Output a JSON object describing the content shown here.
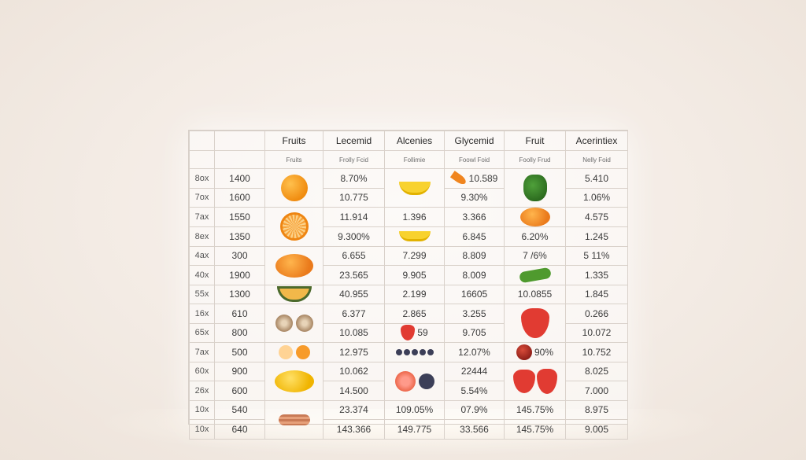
{
  "headers": [
    "",
    "",
    "Fruits",
    "Lecemid",
    "Alcenies",
    "Glycemid",
    "Fruit",
    "Acerintiex"
  ],
  "subheaders": [
    "",
    "",
    "Fruits",
    "Frolly Fcid",
    "Follimie",
    "Foowl Foid",
    "Foolly Frud",
    "Nelly Foid"
  ],
  "rows": [
    {
      "label": "8ox",
      "num": "1400",
      "c3": "8.70%",
      "c4": "",
      "c5": "10.589",
      "c7": "5.410"
    },
    {
      "label": "7ox",
      "num": "1600",
      "c3": "10.775",
      "c4": "",
      "c5": "9.30%",
      "c7": "1.06%"
    },
    {
      "label": "7ax",
      "num": "1550",
      "c3": "11.914",
      "c4": "1.396",
      "c5": "3.366",
      "c7": "4.575"
    },
    {
      "label": "8ex",
      "num": "1350",
      "c3": "9.300%",
      "c4": "",
      "c5": "6.845",
      "c6": "6.20%",
      "c7": "1.245"
    },
    {
      "label": "4ax",
      "num": "300",
      "c3": "6.655",
      "c4": "7.299",
      "c5": "8.809",
      "c6": "7 /6%",
      "c7": "5 11%"
    },
    {
      "label": "40x",
      "num": "1900",
      "c3": "23.565",
      "c4": "9.905",
      "c5": "8.009",
      "c7": "1.335"
    },
    {
      "label": "55x",
      "num": "1300",
      "c3": "40.955",
      "c4": "2.199",
      "c5": "16605",
      "c6": "10.0855",
      "c7": "1.845"
    },
    {
      "label": "16x",
      "num": "610",
      "c3": "6.377",
      "c4": "2.865",
      "c5": "3.255",
      "c7": "0.266"
    },
    {
      "label": "65x",
      "num": "800",
      "c3": "10.085",
      "c4": "59",
      "c5": "9.705",
      "c7": "10.072"
    },
    {
      "label": "7ax",
      "num": "500",
      "c3": "12.975",
      "c4": "",
      "c5": "12.07%",
      "c6": "90%",
      "c7": "10.752"
    },
    {
      "label": "60x",
      "num": "900",
      "c3": "10.062",
      "c4": "",
      "c5": "22444",
      "c7": "8.025"
    },
    {
      "label": "26x",
      "num": "600",
      "c3": "14.500",
      "c4": "",
      "c5": "5.54%",
      "c7": "7.000"
    },
    {
      "label": "10x",
      "num": "540",
      "c3": "23.374",
      "c4": "109.05%",
      "c5": "07.9%",
      "c6": "145.75%",
      "c7": "8.975"
    },
    {
      "label": "10x",
      "num": "640",
      "c3": "143.366",
      "c4": "149.775",
      "c5": "33.566",
      "c6": "145.75%",
      "c7": "9.005"
    }
  ]
}
